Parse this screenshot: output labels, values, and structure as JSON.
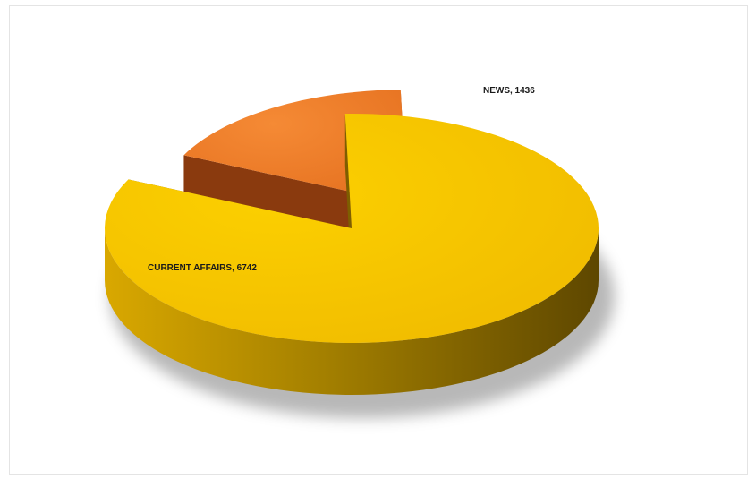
{
  "chart_data": {
    "type": "pie",
    "style": "3d-exploded",
    "title": "",
    "legend": "none",
    "categories": [
      "CURRENT AFFAIRS",
      "NEWS"
    ],
    "values": [
      6742,
      1436
    ],
    "labels": [
      {
        "text": "CURRENT AFFAIRS, 6742"
      },
      {
        "text": "NEWS, 1436"
      }
    ],
    "colors": {
      "top": [
        "#f7c300",
        "#ef7d26"
      ],
      "side": [
        "#7e5e00",
        "#8a3a0e"
      ]
    }
  }
}
